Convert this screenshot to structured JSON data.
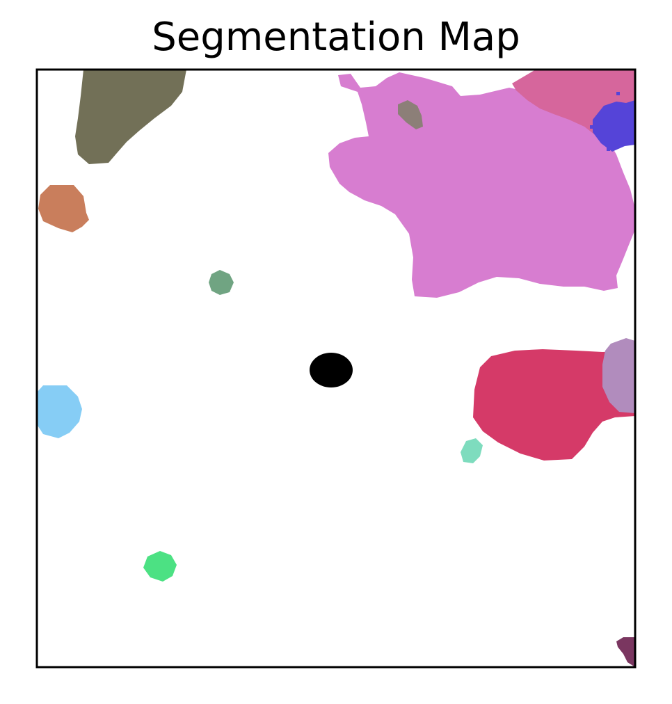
{
  "figure": {
    "title": "Segmentation Map"
  },
  "colors": {
    "background": "#ffffff",
    "frame": "#000000",
    "segments": {
      "olive": "#727057",
      "terracotta": "#c97e5c",
      "orchid": "#d77dd0",
      "rose": "#d6669c",
      "blue": "#5544d8",
      "taupe": "#8c7f78",
      "sage": "#70a482",
      "black": "#000000",
      "sky": "#86cdf5",
      "crimson": "#d53a68",
      "lilac": "#b18cbd",
      "mint": "#7edcbe",
      "green": "#4ce183",
      "plum": "#7a3660"
    }
  }
}
